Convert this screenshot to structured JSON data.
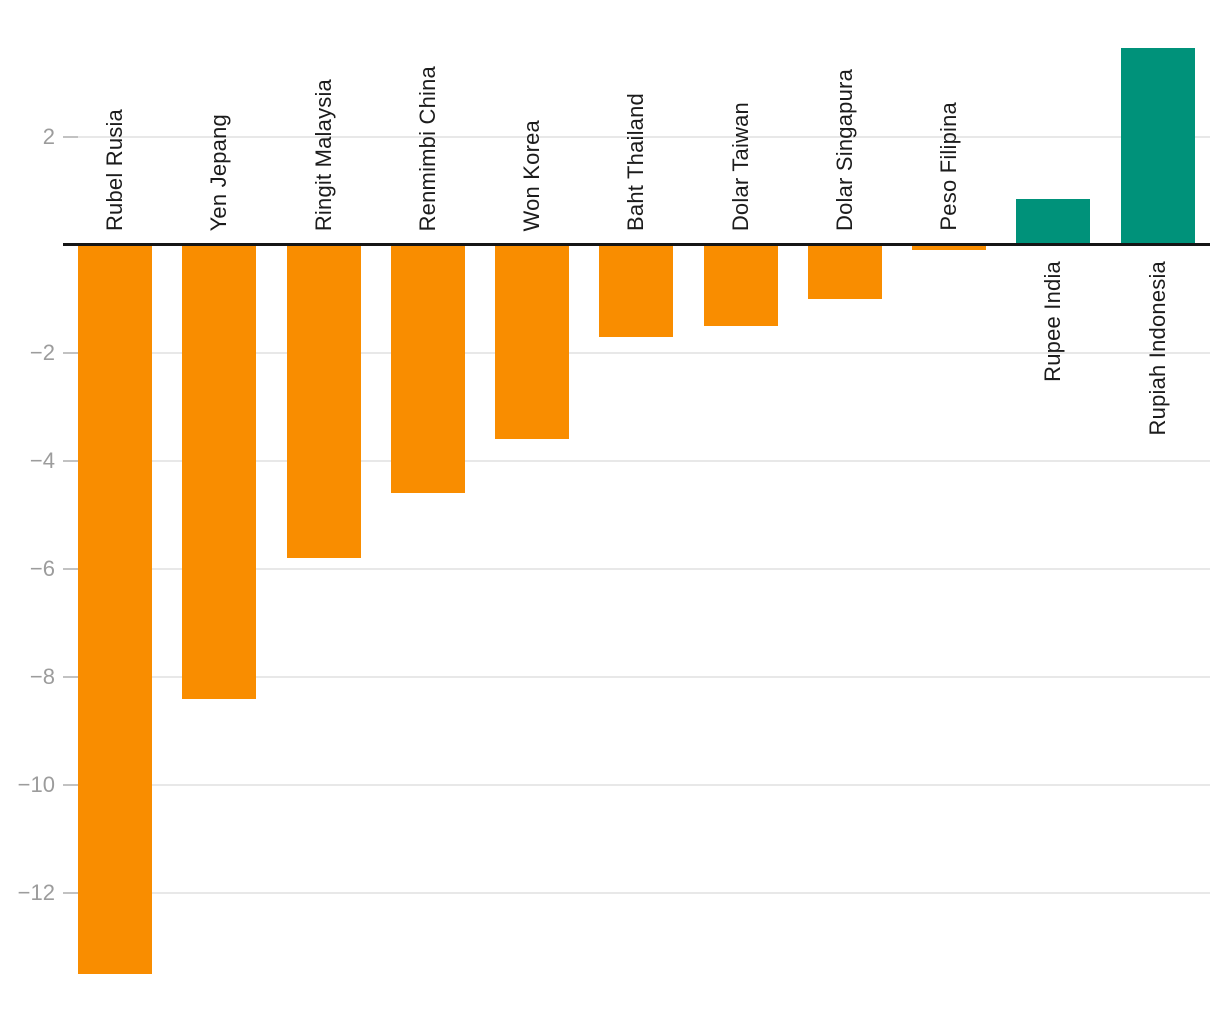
{
  "chart_data": {
    "type": "bar",
    "orientation": "vertical",
    "categories": [
      "Rubel Rusia",
      "Yen Jepang",
      "Ringit Malaysia",
      "Renmimbi China",
      "Won Korea",
      "Baht Thailand",
      "Dolar Taiwan",
      "Dolar Singapura",
      "Peso Filipina",
      "Rupee India",
      "Rupiah Indonesia"
    ],
    "values": [
      -13.5,
      -8.4,
      -5.8,
      -4.6,
      -3.6,
      -1.7,
      -1.5,
      -1.0,
      -0.1,
      0.85,
      3.65
    ],
    "yticks": [
      {
        "value": 2,
        "label": "2"
      },
      {
        "value": -2,
        "label": "−2"
      },
      {
        "value": -4,
        "label": "−4"
      },
      {
        "value": -6,
        "label": "−6"
      },
      {
        "value": -8,
        "label": "−8"
      },
      {
        "value": -10,
        "label": "−10"
      },
      {
        "value": -12,
        "label": "−12"
      }
    ],
    "ylim": [
      -13.9,
      3.9
    ],
    "grid": true,
    "legend": false,
    "colors": {
      "negative": "#f98d00",
      "positive": "#00927a"
    },
    "axis_colors": {
      "zero_line": "#151515",
      "gridline": "#e8e8e8",
      "tick": "#c2c2c2",
      "tick_label": "#9c9c9c",
      "category_label": "#1c1c1c"
    }
  }
}
